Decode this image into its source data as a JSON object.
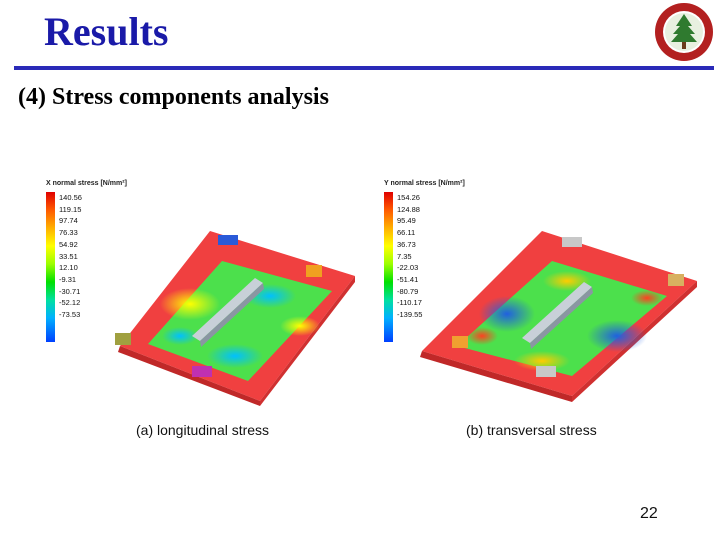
{
  "slide": {
    "title": "Results",
    "subtitle": "(4) Stress components analysis",
    "page_number": "22"
  },
  "figures": [
    {
      "legend_title": "X normal stress [N/mm²]",
      "legend_values": [
        "140.56",
        "119.15",
        "97.74",
        "76.33",
        "54.92",
        "33.51",
        "12.10",
        "-9.31",
        "-30.71",
        "-52.12",
        "-73.53"
      ],
      "caption": "(a) longitudinal stress"
    },
    {
      "legend_title": "Y normal stress [N/mm²]",
      "legend_values": [
        "154.26",
        "124.88",
        "95.49",
        "66.11",
        "36.73",
        "7.35",
        "-22.03",
        "-51.41",
        "-80.79",
        "-110.17",
        "-139.55"
      ],
      "caption": "(b) transversal stress"
    }
  ],
  "colors": {
    "title": "#1a1aa8",
    "rule": "#2a2ab8",
    "logo": "#b32020",
    "plate_red": "#f04040",
    "stress_green": "#4ce04c",
    "stress_blue": "#3070e0"
  }
}
